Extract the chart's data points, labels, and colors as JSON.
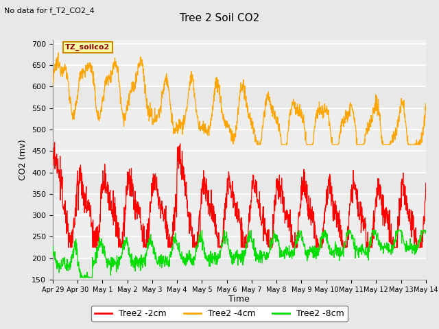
{
  "title": "Tree 2 Soil CO2",
  "subtitle": "No data for f_T2_CO2_4",
  "xlabel": "Time",
  "ylabel": "CO2 (mv)",
  "ylim": [
    150,
    710
  ],
  "yticks": [
    150,
    200,
    250,
    300,
    350,
    400,
    450,
    500,
    550,
    600,
    650,
    700
  ],
  "xtick_labels": [
    "Apr 29",
    "Apr 30",
    "May 1",
    "May 2",
    "May 3",
    "May 4",
    "May 5",
    "May 6",
    "May 7",
    "May 8",
    "May 9",
    "May 10",
    "May 11",
    "May 12",
    "May 13",
    "May 14"
  ],
  "legend_label_2cm": "Tree2 -2cm",
  "legend_label_4cm": "Tree2 -4cm",
  "legend_label_8cm": "Tree2 -8cm",
  "color_2cm": "#ff0000",
  "color_4cm": "#ffa500",
  "color_8cm": "#00dd00",
  "annotation_text": "TZ_soilco2",
  "annotation_color": "#8B0000",
  "annotation_bg": "#ffffaa",
  "bg_color": "#e8e8e8",
  "plot_bg": "#eeeeee",
  "grid_color": "#ffffff",
  "band_color": "#e0e0e0"
}
